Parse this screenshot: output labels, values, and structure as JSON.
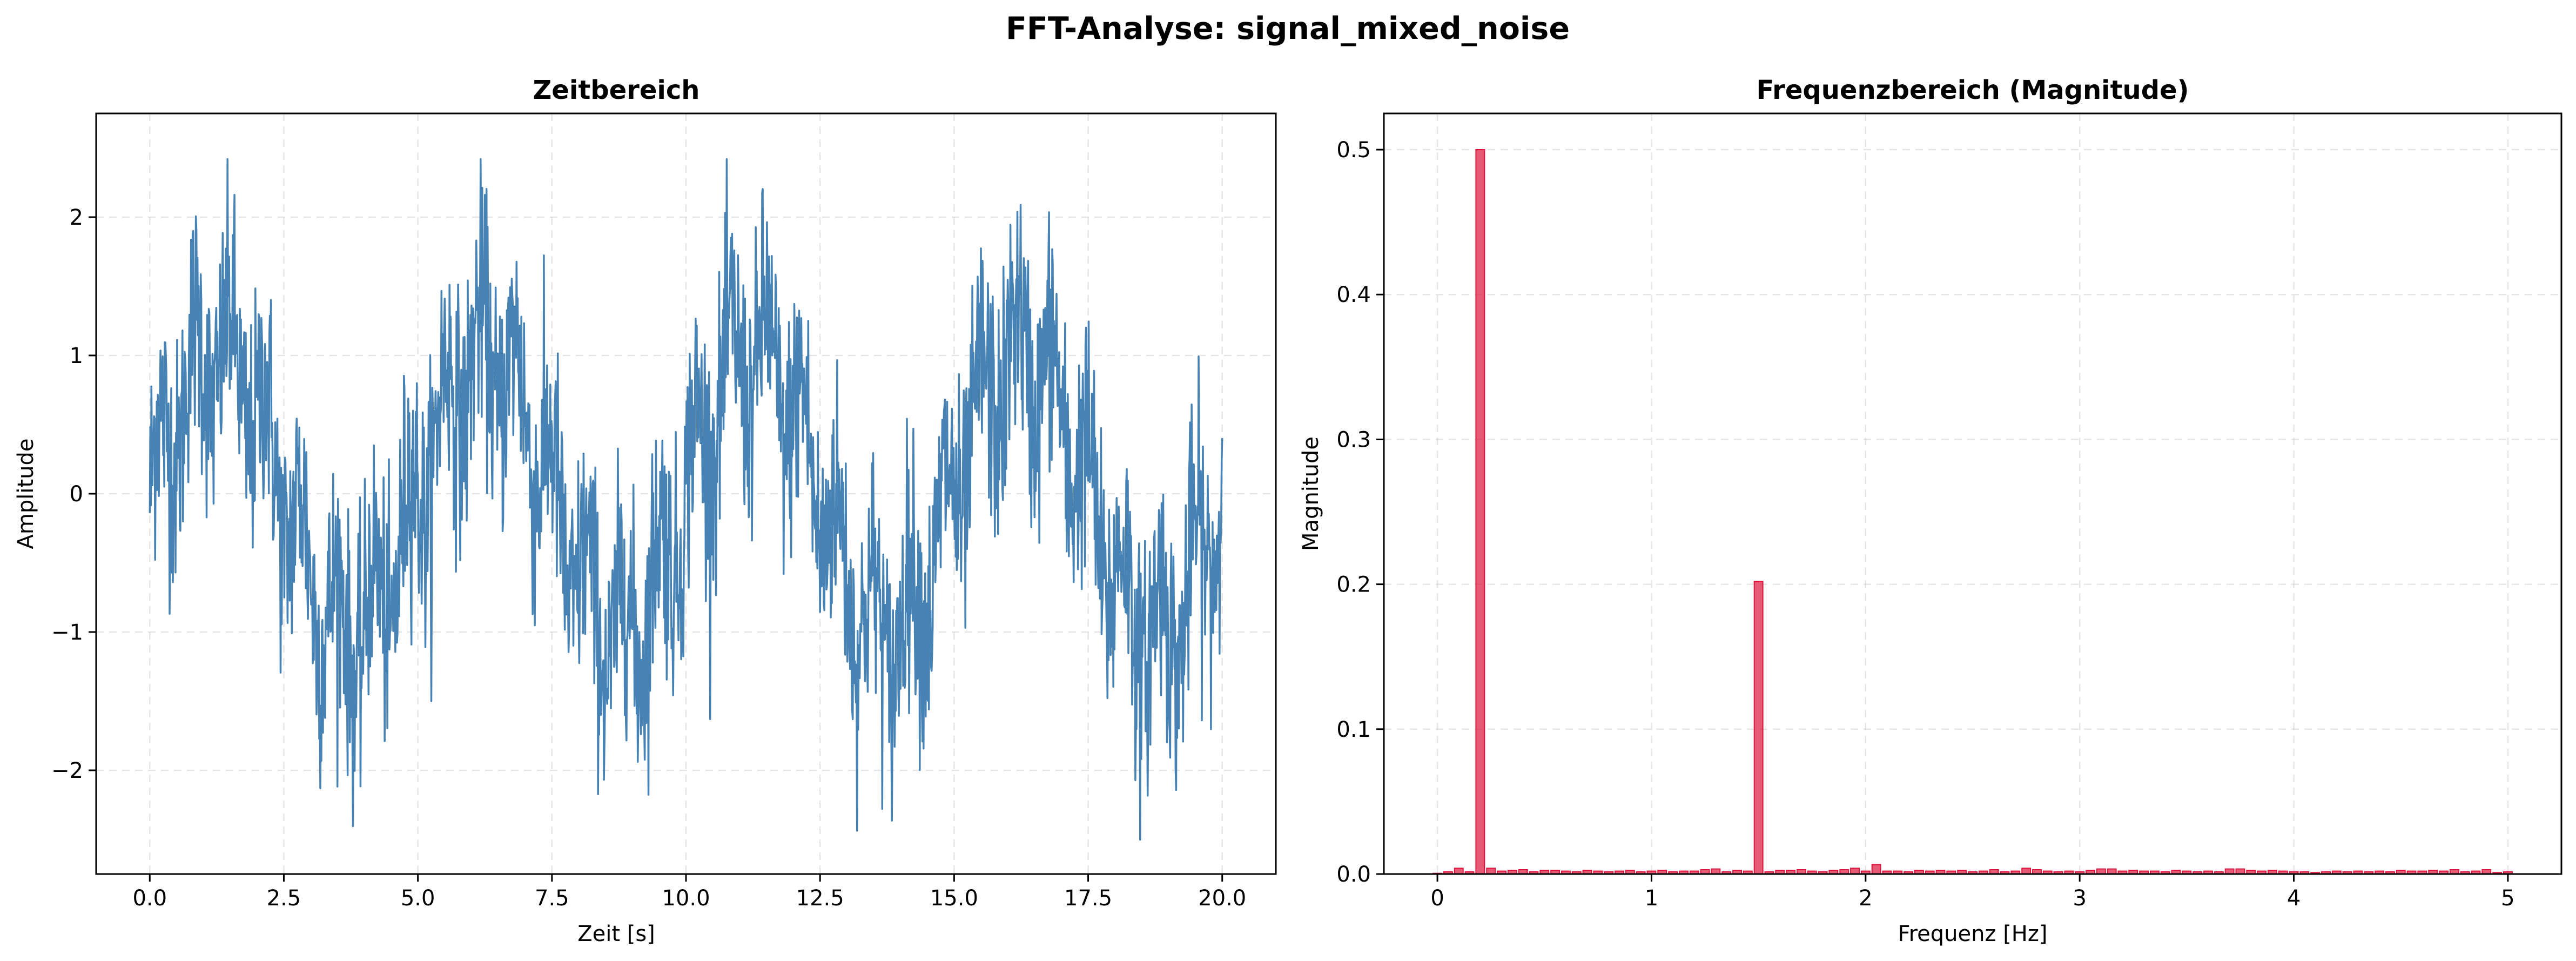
{
  "figure": {
    "suptitle": "FFT-Analyse: signal_mixed_noise"
  },
  "chart_data": [
    {
      "type": "line",
      "title": "Zeitbereich",
      "xlabel": "Zeit [s]",
      "ylabel": "Amplitude",
      "xlim": [
        -1.0,
        21.0
      ],
      "ylim": [
        -2.75,
        2.75
      ],
      "xticks": [
        0.0,
        2.5,
        5.0,
        7.5,
        10.0,
        12.5,
        15.0,
        17.5,
        20.0
      ],
      "xtick_labels": [
        "0.0",
        "2.5",
        "5.0",
        "7.5",
        "10.0",
        "12.5",
        "15.0",
        "17.5",
        "20.0"
      ],
      "yticks": [
        -2,
        -1,
        0,
        1,
        2
      ],
      "ytick_labels": [
        "−2",
        "−1",
        "0",
        "1",
        "2"
      ],
      "grid": true,
      "color": "#4682b4",
      "signal": {
        "t_start": 0.0,
        "t_end": 20.0,
        "sample_rate_hz": 100,
        "components": [
          {
            "frequency_hz": 0.2,
            "amplitude": 1.0
          },
          {
            "frequency_hz": 1.5,
            "amplitude": 0.4
          }
        ],
        "noise": "random",
        "approx_range": [
          -2.55,
          2.42
        ]
      }
    },
    {
      "type": "bar",
      "title": "Frequenzbereich (Magnitude)",
      "xlabel": "Frequenz [Hz]",
      "ylabel": "Magnitude",
      "xlim": [
        -0.25,
        5.25
      ],
      "ylim": [
        0.0,
        0.525
      ],
      "xticks": [
        0,
        1,
        2,
        3,
        4,
        5
      ],
      "xtick_labels": [
        "0",
        "1",
        "2",
        "3",
        "4",
        "5"
      ],
      "yticks": [
        0.0,
        0.1,
        0.2,
        0.3,
        0.4,
        0.5
      ],
      "ytick_labels": [
        "0.0",
        "0.1",
        "0.2",
        "0.3",
        "0.4",
        "0.5"
      ],
      "grid": true,
      "color": "#dc143c",
      "bar_width_hz": 0.04,
      "x": [
        0.0,
        0.05,
        0.1,
        0.15,
        0.2,
        0.25,
        0.3,
        0.35,
        0.4,
        0.45,
        0.5,
        0.55,
        0.6,
        0.65,
        0.7,
        0.75,
        0.8,
        0.85,
        0.9,
        0.95,
        1.0,
        1.05,
        1.1,
        1.15,
        1.2,
        1.25,
        1.3,
        1.35,
        1.4,
        1.45,
        1.5,
        1.55,
        1.6,
        1.65,
        1.7,
        1.75,
        1.8,
        1.85,
        1.9,
        1.95,
        2.0,
        2.05,
        2.1,
        2.15,
        2.2,
        2.25,
        2.3,
        2.35,
        2.4,
        2.45,
        2.5,
        2.55,
        2.6,
        2.65,
        2.7,
        2.75,
        2.8,
        2.85,
        2.9,
        2.95,
        3.0,
        3.05,
        3.1,
        3.15,
        3.2,
        3.25,
        3.3,
        3.35,
        3.4,
        3.45,
        3.5,
        3.55,
        3.6,
        3.65,
        3.7,
        3.75,
        3.8,
        3.85,
        3.9,
        3.95,
        4.0,
        4.05,
        4.1,
        4.15,
        4.2,
        4.25,
        4.3,
        4.35,
        4.4,
        4.45,
        4.5,
        4.55,
        4.6,
        4.65,
        4.7,
        4.75,
        4.8,
        4.85,
        4.9,
        4.95,
        5.0
      ],
      "values": [
        0.0005,
        0.0015,
        0.004,
        0.0015,
        0.5,
        0.004,
        0.002,
        0.0025,
        0.003,
        0.0015,
        0.0025,
        0.0025,
        0.002,
        0.0015,
        0.0025,
        0.002,
        0.0015,
        0.002,
        0.0025,
        0.0015,
        0.002,
        0.0025,
        0.0015,
        0.002,
        0.002,
        0.003,
        0.0035,
        0.0015,
        0.0025,
        0.002,
        0.202,
        0.0015,
        0.0025,
        0.0025,
        0.003,
        0.002,
        0.0015,
        0.0025,
        0.003,
        0.004,
        0.002,
        0.0065,
        0.002,
        0.002,
        0.0015,
        0.0025,
        0.002,
        0.0025,
        0.002,
        0.0025,
        0.0015,
        0.002,
        0.003,
        0.0015,
        0.002,
        0.004,
        0.003,
        0.002,
        0.0015,
        0.002,
        0.0015,
        0.0025,
        0.0035,
        0.0035,
        0.002,
        0.0025,
        0.002,
        0.002,
        0.0015,
        0.0025,
        0.002,
        0.0015,
        0.002,
        0.0015,
        0.0035,
        0.0035,
        0.0025,
        0.002,
        0.0025,
        0.002,
        0.0015,
        0.0015,
        0.001,
        0.0015,
        0.002,
        0.0015,
        0.002,
        0.0015,
        0.002,
        0.0015,
        0.0025,
        0.002,
        0.002,
        0.0025,
        0.002,
        0.003,
        0.0015,
        0.002,
        0.003,
        0.001,
        0.0015
      ]
    }
  ]
}
